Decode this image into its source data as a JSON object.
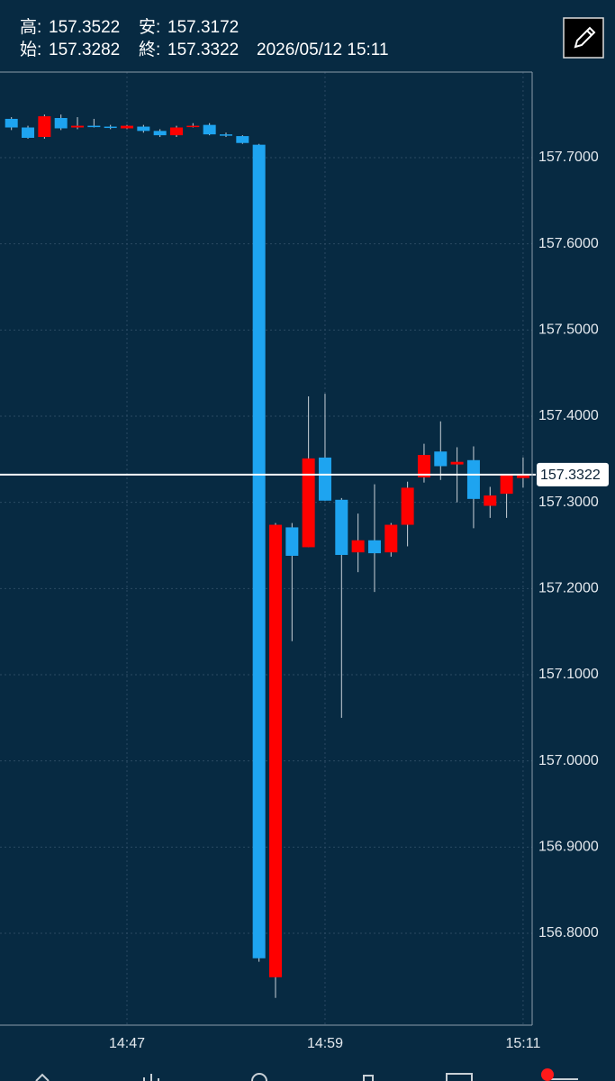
{
  "header": {
    "high_label": "高:",
    "low_label": "安:",
    "open_label": "始:",
    "close_label": "終:",
    "datetime": "2026/05/12 15:11"
  },
  "chart_data": {
    "type": "candlestick",
    "categories": [
      null,
      null,
      null,
      null,
      null,
      null,
      null,
      "14:47",
      null,
      null,
      null,
      null,
      null,
      null,
      null,
      null,
      null,
      null,
      null,
      "14:59",
      null,
      null,
      null,
      null,
      null,
      null,
      null,
      null,
      null,
      null,
      null,
      "15:11"
    ],
    "open": [
      157.745,
      157.735,
      157.724,
      157.746,
      157.735,
      157.737,
      157.736,
      157.734,
      157.736,
      157.731,
      157.726,
      157.736,
      157.738,
      157.727,
      157.725,
      157.715,
      156.749,
      157.271,
      157.248,
      157.352,
      157.303,
      157.242,
      157.256,
      157.242,
      157.274,
      157.329,
      157.359,
      157.344,
      157.349,
      157.296,
      157.31,
      157.3282
    ],
    "high": [
      157.747,
      157.737,
      157.75,
      157.75,
      157.747,
      157.745,
      157.738,
      157.738,
      157.738,
      157.733,
      157.737,
      157.74,
      157.74,
      157.729,
      157.726,
      157.716,
      157.276,
      157.276,
      157.423,
      157.426,
      157.305,
      157.287,
      157.321,
      157.276,
      157.324,
      157.368,
      157.394,
      157.364,
      157.365,
      157.318,
      157.333,
      157.3522
    ],
    "low": [
      157.732,
      157.722,
      157.722,
      157.732,
      157.733,
      157.735,
      157.733,
      157.733,
      157.729,
      157.724,
      157.724,
      157.735,
      157.726,
      157.724,
      157.716,
      156.767,
      156.725,
      157.139,
      157.248,
      157.302,
      157.05,
      157.219,
      157.196,
      157.237,
      157.249,
      157.323,
      157.326,
      157.3,
      157.27,
      157.282,
      157.282,
      157.3172
    ],
    "close": [
      157.735,
      157.723,
      157.748,
      157.734,
      157.737,
      157.736,
      157.735,
      157.737,
      157.731,
      157.726,
      157.735,
      157.737,
      157.727,
      157.726,
      157.717,
      156.771,
      157.274,
      157.238,
      157.351,
      157.302,
      157.239,
      157.256,
      157.241,
      157.274,
      157.317,
      157.355,
      157.342,
      157.347,
      157.304,
      157.308,
      157.332,
      157.3322
    ],
    "up_color": "#ff0000",
    "down_color": "#1ea4f0",
    "ylim": [
      156.6934,
      157.7993
    ],
    "yticks": [
      {
        "value": 156.8,
        "label": "156.8000"
      },
      {
        "value": 156.9,
        "label": "156.9000"
      },
      {
        "value": 157.0,
        "label": "157.0000"
      },
      {
        "value": 157.1,
        "label": "157.1000"
      },
      {
        "value": 157.2,
        "label": "157.2000"
      },
      {
        "value": 157.3,
        "label": "157.3000"
      },
      {
        "value": 157.4,
        "label": "157.4000"
      },
      {
        "value": 157.5,
        "label": "157.5000"
      },
      {
        "value": 157.6,
        "label": "157.6000"
      },
      {
        "value": 157.7,
        "label": "157.7000"
      }
    ],
    "grid": true
  }
}
